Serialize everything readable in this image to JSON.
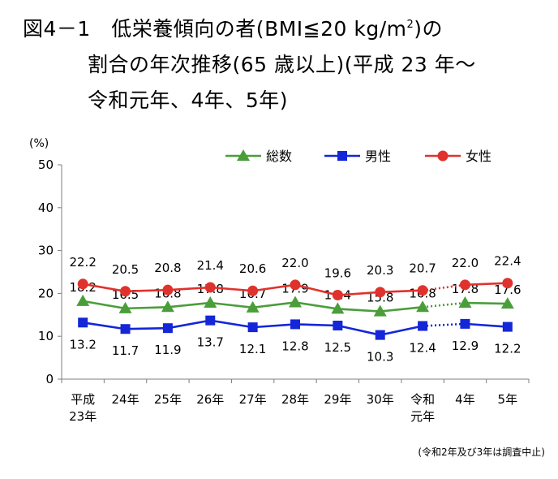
{
  "title": {
    "line1_pre": "図4－1　低栄養傾向の者(BMI≦20 kg/m",
    "line1_sup": "2",
    "line1_post": ")の",
    "line2": "割合の年次推移(65 歳以上)(平成 23 年～",
    "line3": "令和元年、4年、5年)"
  },
  "note": "(令和2年及び3年は調査中止)",
  "chart_data": {
    "type": "line",
    "ylabel": "(%)",
    "ylim": [
      0,
      50
    ],
    "yticks": [
      0,
      10,
      20,
      30,
      40,
      50
    ],
    "categories": [
      [
        "平成",
        "23年"
      ],
      [
        "24年"
      ],
      [
        "25年"
      ],
      [
        "26年"
      ],
      [
        "27年"
      ],
      [
        "28年"
      ],
      [
        "29年"
      ],
      [
        "30年"
      ],
      [
        "令和",
        "元年"
      ],
      [
        "4年"
      ],
      [
        "5年"
      ]
    ],
    "legend_position": "top-right",
    "series": [
      {
        "name": "総数",
        "color": "#4a9e3a",
        "marker": "triangle",
        "values": [
          18.2,
          16.5,
          16.8,
          17.8,
          16.7,
          17.9,
          16.4,
          15.8,
          16.8,
          17.8,
          17.6
        ],
        "labels": [
          "18.2",
          "16.5",
          "16.8",
          "17.8",
          "16.7",
          "17.9",
          "16.4",
          "15.8",
          "16.8",
          "17.8",
          "17.6"
        ]
      },
      {
        "name": "男性",
        "color": "#1426d8",
        "marker": "square",
        "values": [
          13.2,
          11.7,
          11.9,
          13.7,
          12.1,
          12.8,
          12.5,
          10.3,
          12.4,
          12.9,
          12.2
        ],
        "labels": [
          "13.2",
          "11.7",
          "11.9",
          "13.7",
          "12.1",
          "12.8",
          "12.5",
          "10.3",
          "12.4",
          "12.9",
          "12.2"
        ]
      },
      {
        "name": "女性",
        "color": "#e0322c",
        "marker": "circle",
        "values": [
          22.2,
          20.5,
          20.8,
          21.4,
          20.6,
          22.0,
          19.6,
          20.3,
          20.7,
          22.0,
          22.4
        ],
        "labels": [
          "22.2",
          "20.5",
          "20.8",
          "21.4",
          "20.6",
          "22.0",
          "19.6",
          "20.3",
          "20.7",
          "22.0",
          "22.4"
        ]
      }
    ],
    "gap_after_index": 8,
    "gap_style": "dotted",
    "grid": false
  }
}
